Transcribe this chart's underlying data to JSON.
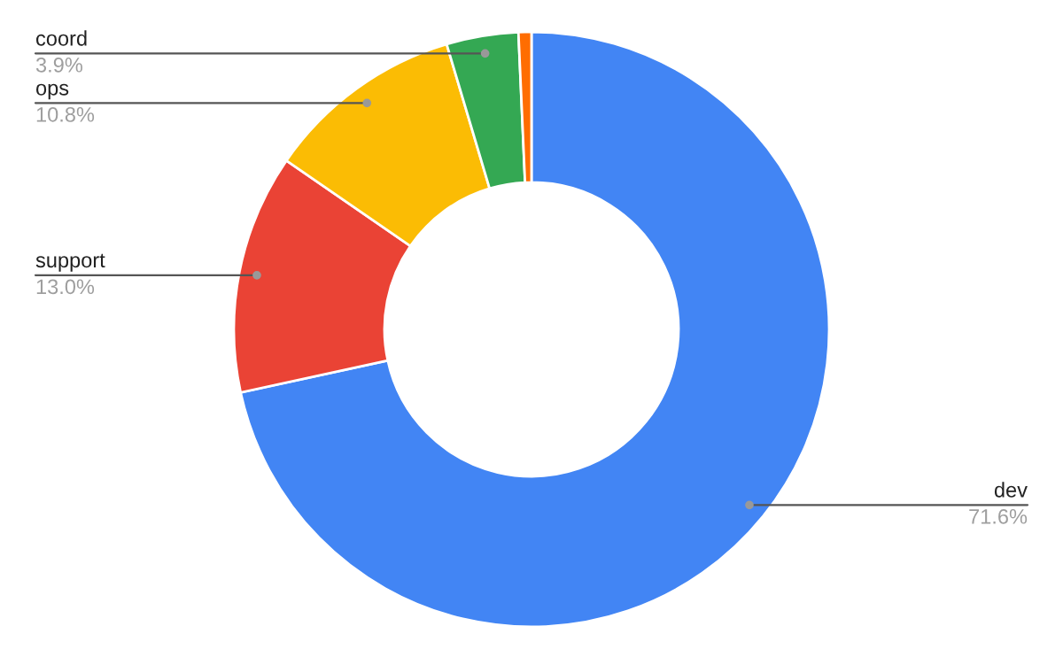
{
  "chart_data": {
    "type": "donut",
    "categories": [
      "dev",
      "support",
      "ops",
      "coord",
      null
    ],
    "values": [
      71.6,
      13.0,
      10.8,
      3.9,
      0.7
    ],
    "colors": [
      "#4285f4",
      "#ea4335",
      "#fbbc04",
      "#34a853",
      "#ff6d01"
    ],
    "value_labels": [
      "71.6%",
      "13.0%",
      "10.8%",
      "3.9%",
      null
    ],
    "legend": false
  }
}
